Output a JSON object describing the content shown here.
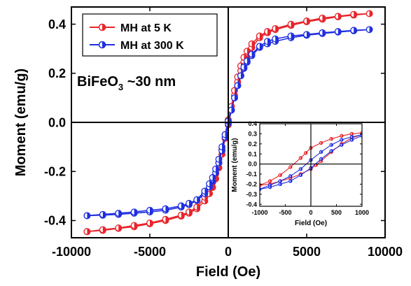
{
  "chart_data": [
    {
      "type": "line",
      "xlabel": "Field (Oe)",
      "ylabel": "Moment (emu/g)",
      "xlim": [
        -10000,
        10000
      ],
      "ylim": [
        -0.47,
        0.47
      ],
      "xticks": [
        -10000,
        -5000,
        0,
        5000,
        10000
      ],
      "xtick_labels": [
        "-10000",
        "-5000",
        "0",
        "5000",
        "10000"
      ],
      "yticks": [
        -0.4,
        -0.2,
        0.0,
        0.2,
        0.4
      ],
      "ytick_labels": [
        "-0.4",
        "-0.2",
        "0.0",
        "0.2",
        "0.4"
      ],
      "grid": false,
      "legend_position": "top-left",
      "annotation": {
        "prefix": "BiFeO",
        "subscript": "3",
        "suffix": " ~30 nm"
      },
      "series": [
        {
          "name": "MH at 5 K",
          "color": "#e8242a",
          "marker": "half-filled-circle",
          "x": [
            -9000,
            -8000,
            -7000,
            -6000,
            -5000,
            -4000,
            -3000,
            -2500,
            -2000,
            -1500,
            -1200,
            -1000,
            -800,
            -600,
            -400,
            -200,
            0,
            200,
            400,
            600,
            800,
            1000,
            1200,
            1500,
            2000,
            2500,
            3000,
            4000,
            5000,
            6000,
            7000,
            8000,
            9000,
            8000,
            7000,
            6000,
            5000,
            4000,
            3000,
            2500,
            2000,
            1500,
            1200,
            1000,
            800,
            600,
            400,
            200,
            0,
            -200,
            -400,
            -600,
            -800,
            -1000,
            -1200,
            -1500,
            -2000,
            -2500,
            -3000,
            -4000,
            -5000,
            -6000,
            -7000,
            -8000,
            -9000
          ],
          "y": [
            -0.445,
            -0.44,
            -0.432,
            -0.425,
            -0.413,
            -0.4,
            -0.382,
            -0.37,
            -0.352,
            -0.32,
            -0.29,
            -0.265,
            -0.23,
            -0.185,
            -0.13,
            -0.065,
            -0.01,
            0.05,
            0.11,
            0.165,
            0.21,
            0.245,
            0.27,
            0.305,
            0.345,
            0.365,
            0.378,
            0.395,
            0.41,
            0.42,
            0.43,
            0.437,
            0.443,
            0.44,
            0.432,
            0.425,
            0.413,
            0.4,
            0.382,
            0.37,
            0.352,
            0.32,
            0.29,
            0.265,
            0.23,
            0.185,
            0.13,
            0.065,
            0.01,
            -0.05,
            -0.11,
            -0.165,
            -0.21,
            -0.245,
            -0.27,
            -0.305,
            -0.345,
            -0.365,
            -0.378,
            -0.395,
            -0.41,
            -0.42,
            -0.43,
            -0.437,
            -0.445
          ]
        },
        {
          "name": "MH at 300 K",
          "color": "#1f2fe0",
          "marker": "half-filled-circle",
          "x": [
            -9000,
            -8000,
            -7000,
            -6000,
            -5000,
            -4000,
            -3000,
            -2500,
            -2000,
            -1500,
            -1200,
            -1000,
            -800,
            -600,
            -400,
            -200,
            0,
            200,
            400,
            600,
            800,
            1000,
            1200,
            1500,
            2000,
            2500,
            3000,
            4000,
            5000,
            6000,
            7000,
            8000,
            9000,
            8000,
            7000,
            6000,
            5000,
            4000,
            3000,
            2500,
            2000,
            1500,
            1200,
            1000,
            800,
            600,
            400,
            200,
            0,
            -200,
            -400,
            -600,
            -800,
            -1000,
            -1200,
            -1500,
            -2000,
            -2500,
            -3000,
            -4000,
            -5000,
            -6000,
            -7000,
            -8000,
            -9000
          ],
          "y": [
            -0.38,
            -0.378,
            -0.375,
            -0.37,
            -0.365,
            -0.358,
            -0.345,
            -0.335,
            -0.318,
            -0.29,
            -0.263,
            -0.24,
            -0.205,
            -0.165,
            -0.115,
            -0.06,
            -0.005,
            0.05,
            0.1,
            0.15,
            0.19,
            0.22,
            0.245,
            0.272,
            0.305,
            0.32,
            0.33,
            0.345,
            0.355,
            0.362,
            0.368,
            0.373,
            0.378,
            0.375,
            0.37,
            0.365,
            0.358,
            0.352,
            0.34,
            0.33,
            0.31,
            0.278,
            0.25,
            0.225,
            0.19,
            0.15,
            0.1,
            0.05,
            0.005,
            -0.05,
            -0.1,
            -0.15,
            -0.19,
            -0.225,
            -0.25,
            -0.28,
            -0.315,
            -0.33,
            -0.34,
            -0.352,
            -0.358,
            -0.365,
            -0.37,
            -0.375,
            -0.38
          ]
        }
      ]
    },
    {
      "type": "line",
      "role": "inset",
      "xlabel": "Field (Oe)",
      "ylabel": "Moment (emu/g)",
      "xlim": [
        -1000,
        1000
      ],
      "ylim": [
        -0.42,
        0.4
      ],
      "xticks": [
        -1000,
        -500,
        0,
        500,
        1000
      ],
      "xtick_labels": [
        "-1000",
        "-500",
        "0",
        "500",
        "1000"
      ],
      "yticks": [
        -0.4,
        -0.3,
        -0.2,
        -0.1,
        0.0,
        0.1,
        0.2,
        0.3,
        0.4
      ],
      "ytick_labels": [
        "-0.4",
        "-0.3",
        "-0.2",
        "-0.1",
        "0.0",
        "0.1",
        "0.2",
        "0.3",
        "0.4"
      ],
      "grid": false,
      "series": [
        {
          "name": "MH at 5 K",
          "color": "#e8242a",
          "x": [
            1000,
            800,
            600,
            400,
            200,
            0,
            -100,
            -200,
            -400,
            -600,
            -800,
            -1000,
            -800,
            -600,
            -400,
            -200,
            0,
            100,
            200,
            400,
            600,
            800,
            1000
          ],
          "y": [
            0.31,
            0.3,
            0.28,
            0.25,
            0.21,
            0.16,
            0.11,
            0.06,
            -0.03,
            -0.11,
            -0.17,
            -0.21,
            -0.2,
            -0.17,
            -0.14,
            -0.1,
            -0.05,
            -0.01,
            0.03,
            0.12,
            0.2,
            0.26,
            0.29
          ]
        },
        {
          "name": "MH at 300 K",
          "color": "#1f2fe0",
          "x": [
            1000,
            800,
            600,
            400,
            200,
            0,
            -200,
            -400,
            -600,
            -800,
            -1000,
            -800,
            -600,
            -400,
            -200,
            0,
            200,
            400,
            600,
            800,
            1000
          ],
          "y": [
            0.29,
            0.27,
            0.24,
            0.19,
            0.12,
            0.04,
            -0.05,
            -0.12,
            -0.17,
            -0.21,
            -0.25,
            -0.23,
            -0.2,
            -0.17,
            -0.11,
            -0.04,
            0.05,
            0.13,
            0.19,
            0.24,
            0.28
          ]
        }
      ]
    }
  ]
}
